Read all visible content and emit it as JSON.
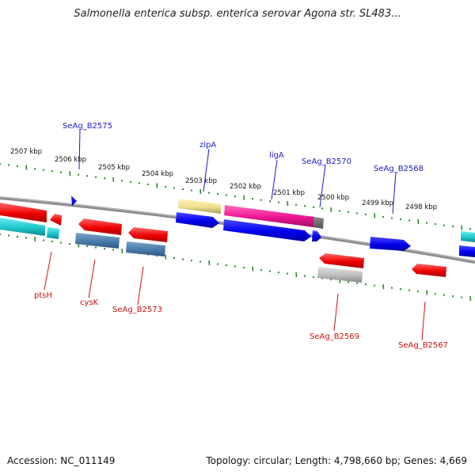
{
  "title": "Salmonella enterica subsp. enterica serovar Agona str. SL483...",
  "footer": {
    "accession": "Accession: NC_011149",
    "summary": "Topology: circular; Length: 4,798,660 bp; Genes: 4,669"
  },
  "colors": {
    "backbone": "#8a8a8a",
    "tick": "#2a8a2a",
    "top_label": "#1a1acc",
    "bottom_label": "#cc1111"
  },
  "scale_labels": [
    "2507 kbp",
    "2506 kbp",
    "2505 kbp",
    "2504 kbp",
    "2503 kbp",
    "2502 kbp",
    "2501 kbp",
    "2500 kbp",
    "2499 kbp",
    "2498 kbp"
  ],
  "top_labels": [
    "SeAg_B2575",
    "zipA",
    "ligA",
    "SeAg_B2570",
    "SeAg_B2568"
  ],
  "bottom_labels": [
    "ptsH",
    "cysK",
    "SeAg_B2573",
    "SeAg_B2569",
    "SeAg_B2567"
  ]
}
